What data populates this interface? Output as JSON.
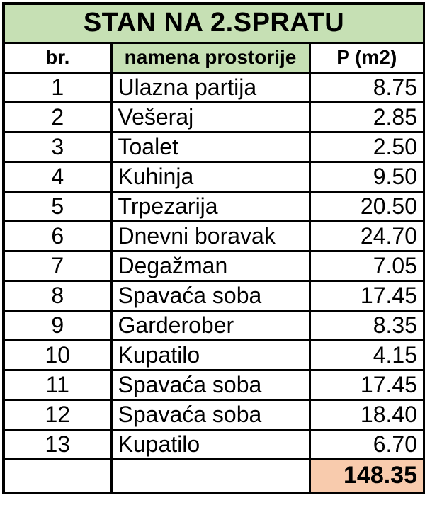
{
  "title": "STAN NA 2.SPRATU",
  "columns": {
    "number": "br.",
    "name": "namena prostorije",
    "area": "P (m2)"
  },
  "rows": [
    {
      "br": "1",
      "name": "Ulazna partija",
      "area": "8.75"
    },
    {
      "br": "2",
      "name": "Vešeraj",
      "area": "2.85"
    },
    {
      "br": "3",
      "name": "Toalet",
      "area": "2.50"
    },
    {
      "br": "4",
      "name": "Kuhinja",
      "area": "9.50"
    },
    {
      "br": "5",
      "name": "Trpezarija",
      "area": "20.50"
    },
    {
      "br": "6",
      "name": "Dnevni boravak",
      "area": "24.70"
    },
    {
      "br": "7",
      "name": "Degažman",
      "area": "7.05"
    },
    {
      "br": "8",
      "name": "Spavaća soba",
      "area": "17.45"
    },
    {
      "br": "9",
      "name": "Garderober",
      "area": "8.35"
    },
    {
      "br": "10",
      "name": "Kupatilo",
      "area": "4.15"
    },
    {
      "br": "11",
      "name": "Spavaća soba",
      "area": "17.45"
    },
    {
      "br": "12",
      "name": "Spavaća soba",
      "area": "18.40"
    },
    {
      "br": "13",
      "name": "Kupatilo",
      "area": "6.70"
    }
  ],
  "total": {
    "area": "148.35"
  },
  "colors": {
    "header_green": "#c6e0b4",
    "total_orange": "#f8cbad",
    "border_black": "#000000",
    "page_white": "#ffffff"
  }
}
